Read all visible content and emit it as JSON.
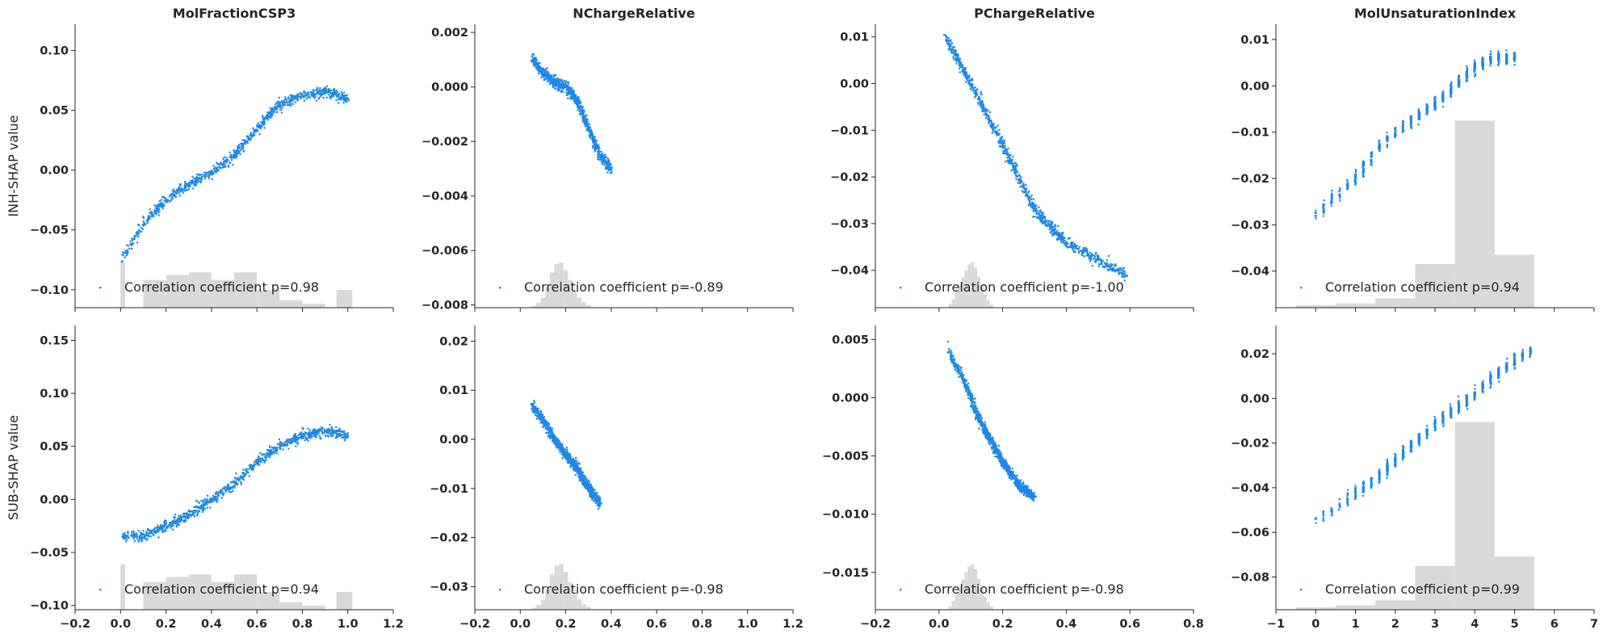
{
  "colors": {
    "points": "#1e88e5",
    "hist": "#d9d9d9",
    "axis": "#262626"
  },
  "chart_data": [
    {
      "type": "scatter",
      "title": "MolFractionCSP3",
      "ylabel": "INH-SHAP value",
      "legend": "Correlation coefficient p=0.98",
      "xlim": [
        -0.2,
        1.2
      ],
      "ylim": [
        -0.115,
        0.122
      ],
      "yticks": [
        "0.10",
        "0.05",
        "0.00",
        "−0.05",
        "−0.10"
      ],
      "ytick_values": [
        0.1,
        0.05,
        0.0,
        -0.05,
        -0.1
      ],
      "xticks": [],
      "xtick_values": [],
      "trend": [
        [
          0,
          -0.075
        ],
        [
          0.1,
          -0.045
        ],
        [
          0.2,
          -0.025
        ],
        [
          0.3,
          -0.012
        ],
        [
          0.4,
          -0.002
        ],
        [
          0.5,
          0.012
        ],
        [
          0.6,
          0.035
        ],
        [
          0.7,
          0.055
        ],
        [
          0.8,
          0.063
        ],
        [
          0.9,
          0.066
        ],
        [
          1.0,
          0.06
        ]
      ],
      "hist": [
        [
          0.0,
          0.02,
          0.9
        ],
        [
          0.1,
          0.1,
          0.55
        ],
        [
          0.2,
          0.1,
          0.65
        ],
        [
          0.3,
          0.1,
          0.7
        ],
        [
          0.4,
          0.1,
          0.55
        ],
        [
          0.5,
          0.1,
          0.7
        ],
        [
          0.6,
          0.1,
          0.35
        ],
        [
          0.7,
          0.1,
          0.15
        ],
        [
          0.8,
          0.1,
          0.08
        ],
        [
          0.95,
          0.07,
          0.35
        ]
      ]
    },
    {
      "type": "scatter",
      "title": "NChargeRelative",
      "ylabel": "",
      "legend": "Correlation coefficient p=-0.89",
      "xlim": [
        -0.2,
        1.2
      ],
      "ylim": [
        -0.0081,
        0.0023
      ],
      "yticks": [
        "0.002",
        "0.000",
        "−0.002",
        "−0.004",
        "−0.006",
        "−0.008"
      ],
      "ytick_values": [
        0.002,
        0.0,
        -0.002,
        -0.004,
        -0.006,
        -0.008
      ],
      "xticks": [],
      "xtick_values": [],
      "trend": [
        [
          0.05,
          0.0011
        ],
        [
          0.1,
          0.0005
        ],
        [
          0.15,
          0.0002
        ],
        [
          0.2,
          0.0
        ],
        [
          0.25,
          -0.0005
        ],
        [
          0.3,
          -0.0015
        ],
        [
          0.35,
          -0.0025
        ],
        [
          0.4,
          -0.003
        ]
      ],
      "hist": [
        [
          0.05,
          0.02,
          0.25
        ],
        [
          0.07,
          0.02,
          0.6
        ],
        [
          0.09,
          0.02,
          1.3
        ],
        [
          0.11,
          0.02,
          2.6
        ],
        [
          0.13,
          0.02,
          4.5
        ],
        [
          0.15,
          0.02,
          5.6
        ],
        [
          0.17,
          0.02,
          5.8
        ],
        [
          0.19,
          0.02,
          4.8
        ],
        [
          0.21,
          0.02,
          3.5
        ],
        [
          0.23,
          0.02,
          2.2
        ],
        [
          0.25,
          0.02,
          1.3
        ],
        [
          0.27,
          0.02,
          0.7
        ],
        [
          0.29,
          0.02,
          0.35
        ]
      ]
    },
    {
      "type": "scatter",
      "title": "PChargeRelative",
      "ylabel": "",
      "legend": "Correlation coefficient p=-1.00",
      "xlim": [
        -0.2,
        0.8
      ],
      "ylim": [
        -0.048,
        0.0127
      ],
      "yticks": [
        "0.01",
        "0.00",
        "−0.01",
        "−0.02",
        "−0.03",
        "−0.04"
      ],
      "ytick_values": [
        0.01,
        0.0,
        -0.01,
        -0.02,
        -0.03,
        -0.04
      ],
      "xticks": [],
      "xtick_values": [],
      "trend": [
        [
          0.02,
          0.01
        ],
        [
          0.1,
          0.0
        ],
        [
          0.2,
          -0.013
        ],
        [
          0.3,
          -0.027
        ],
        [
          0.4,
          -0.034
        ],
        [
          0.59,
          -0.041
        ]
      ],
      "hist": [
        [
          0.03,
          0.01,
          0.5
        ],
        [
          0.04,
          0.01,
          1.2
        ],
        [
          0.05,
          0.01,
          2.2
        ],
        [
          0.06,
          0.01,
          3.2
        ],
        [
          0.07,
          0.01,
          4.2
        ],
        [
          0.08,
          0.01,
          5.2
        ],
        [
          0.09,
          0.01,
          6.0
        ],
        [
          0.1,
          0.01,
          6.3
        ],
        [
          0.11,
          0.01,
          5.6
        ],
        [
          0.12,
          0.01,
          4.3
        ],
        [
          0.13,
          0.01,
          3.0
        ],
        [
          0.14,
          0.01,
          1.8
        ],
        [
          0.15,
          0.01,
          1.0
        ],
        [
          0.16,
          0.01,
          0.45
        ]
      ]
    },
    {
      "type": "scatter",
      "title": "MolUnsaturationIndex",
      "ylabel": "",
      "legend": "Correlation coefficient p=0.94",
      "xlim": [
        -1,
        7
      ],
      "ylim": [
        -0.0479,
        0.0133
      ],
      "yticks": [
        "0.01",
        "0.00",
        "−0.01",
        "−0.02",
        "−0.03",
        "−0.04"
      ],
      "ytick_values": [
        0.01,
        0.0,
        -0.01,
        -0.02,
        -0.03,
        -0.04
      ],
      "xticks": [],
      "xtick_values": [],
      "trend": [
        [
          0,
          -0.028
        ],
        [
          1,
          -0.02
        ],
        [
          1.6,
          -0.013
        ],
        [
          2.5,
          -0.007
        ],
        [
          3,
          -0.004
        ],
        [
          3.5,
          0.0
        ],
        [
          4,
          0.004
        ],
        [
          4.5,
          0.006
        ],
        [
          5,
          0.006
        ]
      ],
      "hist": [
        [
          -0.5,
          1,
          0.8
        ],
        [
          0.5,
          1,
          1.4
        ],
        [
          1.5,
          1,
          3.0
        ],
        [
          2.5,
          1,
          14
        ],
        [
          3.5,
          1,
          60
        ],
        [
          4.5,
          1,
          17
        ]
      ]
    },
    {
      "type": "scatter",
      "title": "",
      "ylabel": "SUB-SHAP value",
      "legend": "Correlation coefficient p=0.94",
      "xlim": [
        -0.2,
        1.2
      ],
      "ylim": [
        -0.104,
        0.164
      ],
      "yticks": [
        "0.15",
        "0.10",
        "0.05",
        "0.00",
        "−0.05",
        "−0.10"
      ],
      "ytick_values": [
        0.15,
        0.1,
        0.05,
        0.0,
        -0.05,
        -0.1
      ],
      "xticks": [
        "−0.2",
        "0.0",
        "0.2",
        "0.4",
        "0.6",
        "0.8",
        "1.0",
        "1.2"
      ],
      "xtick_values": [
        -0.2,
        0,
        0.2,
        0.4,
        0.6,
        0.8,
        1.0,
        1.2
      ],
      "trend": [
        [
          0,
          -0.035
        ],
        [
          0.1,
          -0.035
        ],
        [
          0.2,
          -0.025
        ],
        [
          0.3,
          -0.015
        ],
        [
          0.4,
          0.0
        ],
        [
          0.5,
          0.015
        ],
        [
          0.6,
          0.035
        ],
        [
          0.7,
          0.05
        ],
        [
          0.8,
          0.06
        ],
        [
          0.9,
          0.065
        ],
        [
          1.0,
          0.06
        ]
      ],
      "hist": [
        [
          0.0,
          0.02,
          0.9
        ],
        [
          0.1,
          0.1,
          0.55
        ],
        [
          0.2,
          0.1,
          0.65
        ],
        [
          0.3,
          0.1,
          0.7
        ],
        [
          0.4,
          0.1,
          0.55
        ],
        [
          0.5,
          0.1,
          0.7
        ],
        [
          0.6,
          0.1,
          0.35
        ],
        [
          0.7,
          0.1,
          0.15
        ],
        [
          0.8,
          0.1,
          0.08
        ],
        [
          0.95,
          0.07,
          0.35
        ]
      ]
    },
    {
      "type": "scatter",
      "title": "",
      "ylabel": "",
      "legend": "Correlation coefficient p=-0.98",
      "xlim": [
        -0.2,
        1.2
      ],
      "ylim": [
        -0.0347,
        0.0232
      ],
      "yticks": [
        "0.02",
        "0.01",
        "0.00",
        "−0.01",
        "−0.02",
        "−0.03"
      ],
      "ytick_values": [
        0.02,
        0.01,
        0.0,
        -0.01,
        -0.02,
        -0.03
      ],
      "xticks": [
        "−0.2",
        "0.0",
        "0.2",
        "0.4",
        "0.6",
        "0.8",
        "1.0",
        "1.2"
      ],
      "xtick_values": [
        -0.2,
        0,
        0.2,
        0.4,
        0.6,
        0.8,
        1.0,
        1.2
      ],
      "trend": [
        [
          0.05,
          0.007
        ],
        [
          0.1,
          0.004
        ],
        [
          0.15,
          0.0
        ],
        [
          0.2,
          -0.003
        ],
        [
          0.25,
          -0.006
        ],
        [
          0.3,
          -0.01
        ],
        [
          0.35,
          -0.013
        ]
      ],
      "hist": [
        [
          0.05,
          0.02,
          0.25
        ],
        [
          0.07,
          0.02,
          0.6
        ],
        [
          0.09,
          0.02,
          1.3
        ],
        [
          0.11,
          0.02,
          2.6
        ],
        [
          0.13,
          0.02,
          4.5
        ],
        [
          0.15,
          0.02,
          5.6
        ],
        [
          0.17,
          0.02,
          5.8
        ],
        [
          0.19,
          0.02,
          4.8
        ],
        [
          0.21,
          0.02,
          3.5
        ],
        [
          0.23,
          0.02,
          2.2
        ],
        [
          0.25,
          0.02,
          1.3
        ],
        [
          0.27,
          0.02,
          0.7
        ],
        [
          0.29,
          0.02,
          0.35
        ]
      ]
    },
    {
      "type": "scatter",
      "title": "",
      "ylabel": "",
      "legend": "Correlation coefficient p=-0.98",
      "xlim": [
        -0.2,
        0.8
      ],
      "ylim": [
        -0.0182,
        0.0062
      ],
      "yticks": [
        "0.005",
        "0.000",
        "−0.005",
        "−0.010",
        "−0.015"
      ],
      "ytick_values": [
        0.005,
        0.0,
        -0.005,
        -0.01,
        -0.015
      ],
      "xticks": [
        "−0.2",
        "0.0",
        "0.2",
        "0.4",
        "0.6",
        "0.8"
      ],
      "xtick_values": [
        -0.2,
        0,
        0.2,
        0.4,
        0.6,
        0.8
      ],
      "trend": [
        [
          0.03,
          0.004
        ],
        [
          0.08,
          0.0015
        ],
        [
          0.12,
          -0.0015
        ],
        [
          0.16,
          -0.0035
        ],
        [
          0.2,
          -0.0055
        ],
        [
          0.25,
          -0.0075
        ],
        [
          0.3,
          -0.0085
        ]
      ],
      "hist": [
        [
          0.03,
          0.01,
          0.5
        ],
        [
          0.04,
          0.01,
          1.2
        ],
        [
          0.05,
          0.01,
          2.2
        ],
        [
          0.06,
          0.01,
          3.2
        ],
        [
          0.07,
          0.01,
          4.2
        ],
        [
          0.08,
          0.01,
          5.2
        ],
        [
          0.09,
          0.01,
          6.0
        ],
        [
          0.1,
          0.01,
          6.3
        ],
        [
          0.11,
          0.01,
          5.6
        ],
        [
          0.12,
          0.01,
          4.3
        ],
        [
          0.13,
          0.01,
          3.0
        ],
        [
          0.14,
          0.01,
          1.8
        ],
        [
          0.15,
          0.01,
          1.0
        ],
        [
          0.16,
          0.01,
          0.45
        ]
      ]
    },
    {
      "type": "scatter",
      "title": "",
      "ylabel": "",
      "legend": "Correlation coefficient p=0.99",
      "xlim": [
        -1,
        7
      ],
      "ylim": [
        -0.0947,
        0.0327
      ],
      "yticks": [
        "0.02",
        "0.00",
        "−0.02",
        "−0.04",
        "−0.06",
        "−0.08"
      ],
      "ytick_values": [
        0.02,
        0.0,
        -0.02,
        -0.04,
        -0.06,
        -0.08
      ],
      "xticks": [
        "−1",
        "0",
        "1",
        "2",
        "3",
        "4",
        "5",
        "6",
        "7"
      ],
      "xtick_values": [
        -1,
        0,
        1,
        2,
        3,
        4,
        5,
        6,
        7
      ],
      "trend": [
        [
          0,
          -0.055
        ],
        [
          1,
          -0.043
        ],
        [
          1.6,
          -0.035
        ],
        [
          2,
          -0.028
        ],
        [
          2.5,
          -0.02
        ],
        [
          3,
          -0.012
        ],
        [
          3.5,
          -0.005
        ],
        [
          4,
          0.002
        ],
        [
          4.5,
          0.01
        ],
        [
          5,
          0.017
        ],
        [
          5.5,
          0.022
        ]
      ],
      "hist": [
        [
          -0.5,
          1,
          0.8
        ],
        [
          0.5,
          1,
          1.4
        ],
        [
          1.5,
          1,
          3.0
        ],
        [
          2.5,
          1,
          14
        ],
        [
          3.5,
          1,
          60
        ],
        [
          4.5,
          1,
          17
        ]
      ]
    }
  ]
}
